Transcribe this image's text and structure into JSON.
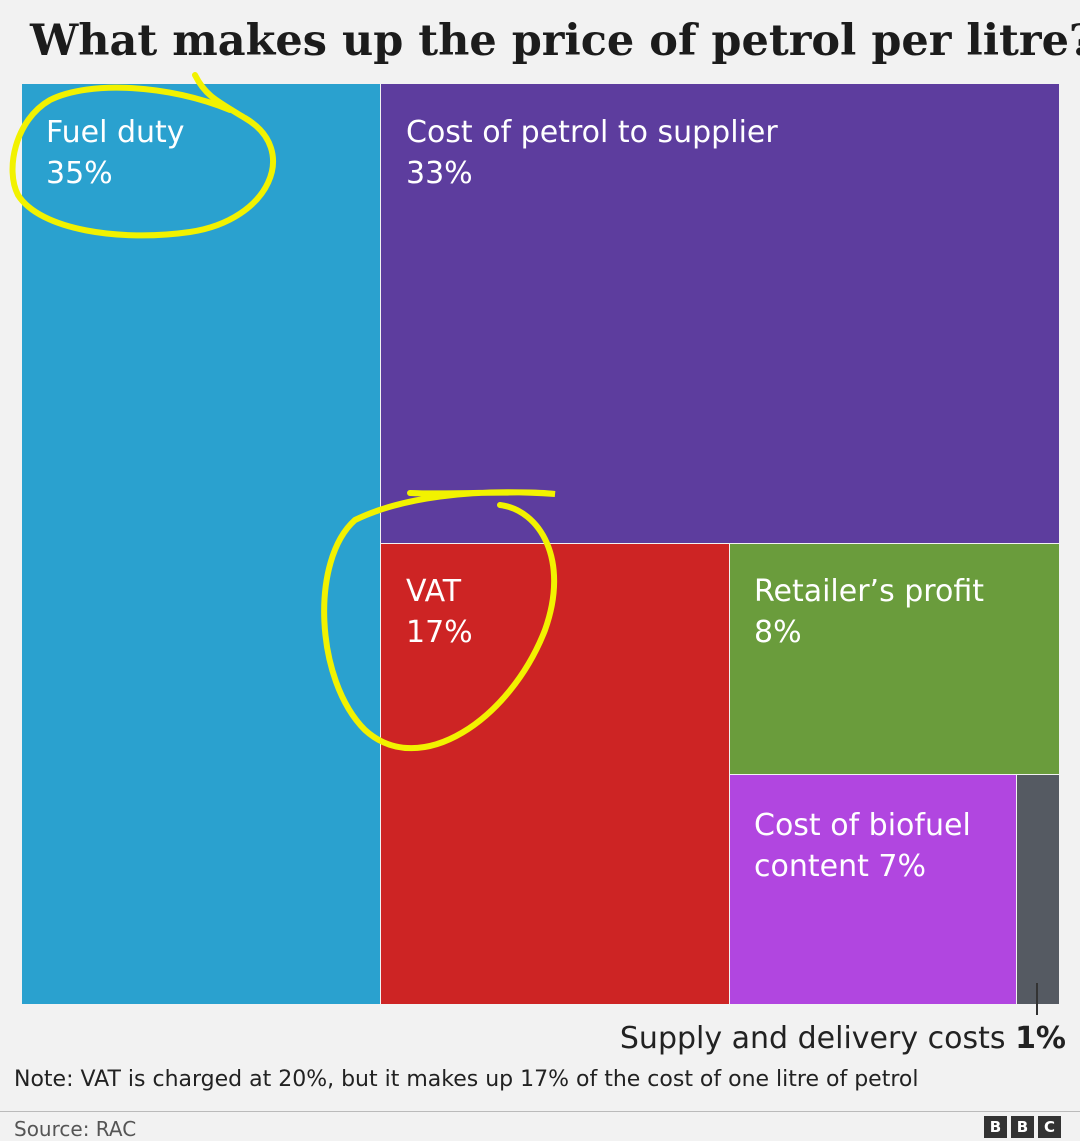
{
  "title": "What makes up the price of petrol per litre?",
  "chart_data": {
    "type": "treemap",
    "title": "What makes up the price of petrol per litre?",
    "unit": "%",
    "items": [
      {
        "label": "Fuel duty",
        "value": 35,
        "display": "35%",
        "color": "#2aa1cf"
      },
      {
        "label": "Cost of petrol to supplier",
        "value": 33,
        "display": "33%",
        "color": "#5d3d9e"
      },
      {
        "label": "VAT",
        "value": 17,
        "display": "17%",
        "color": "#cd2424"
      },
      {
        "label": "Retailer’s profit",
        "value": 8,
        "display": "8%",
        "color": "#6a9c3c"
      },
      {
        "label": "Cost of biofuel content",
        "value": 7,
        "display": "7%",
        "color": "#b146e0"
      },
      {
        "label": "Supply and delivery costs",
        "value": 1,
        "display": "1%",
        "color": "#555a62"
      }
    ],
    "callout": {
      "text": "Supply and delivery costs",
      "value": "1%"
    }
  },
  "note": "Note: VAT is charged at 20%, but it makes up 17% of the cost of one litre of petrol",
  "source": "Source: RAC",
  "logo": [
    "B",
    "B",
    "C"
  ],
  "annotation_color": "#f2f200"
}
